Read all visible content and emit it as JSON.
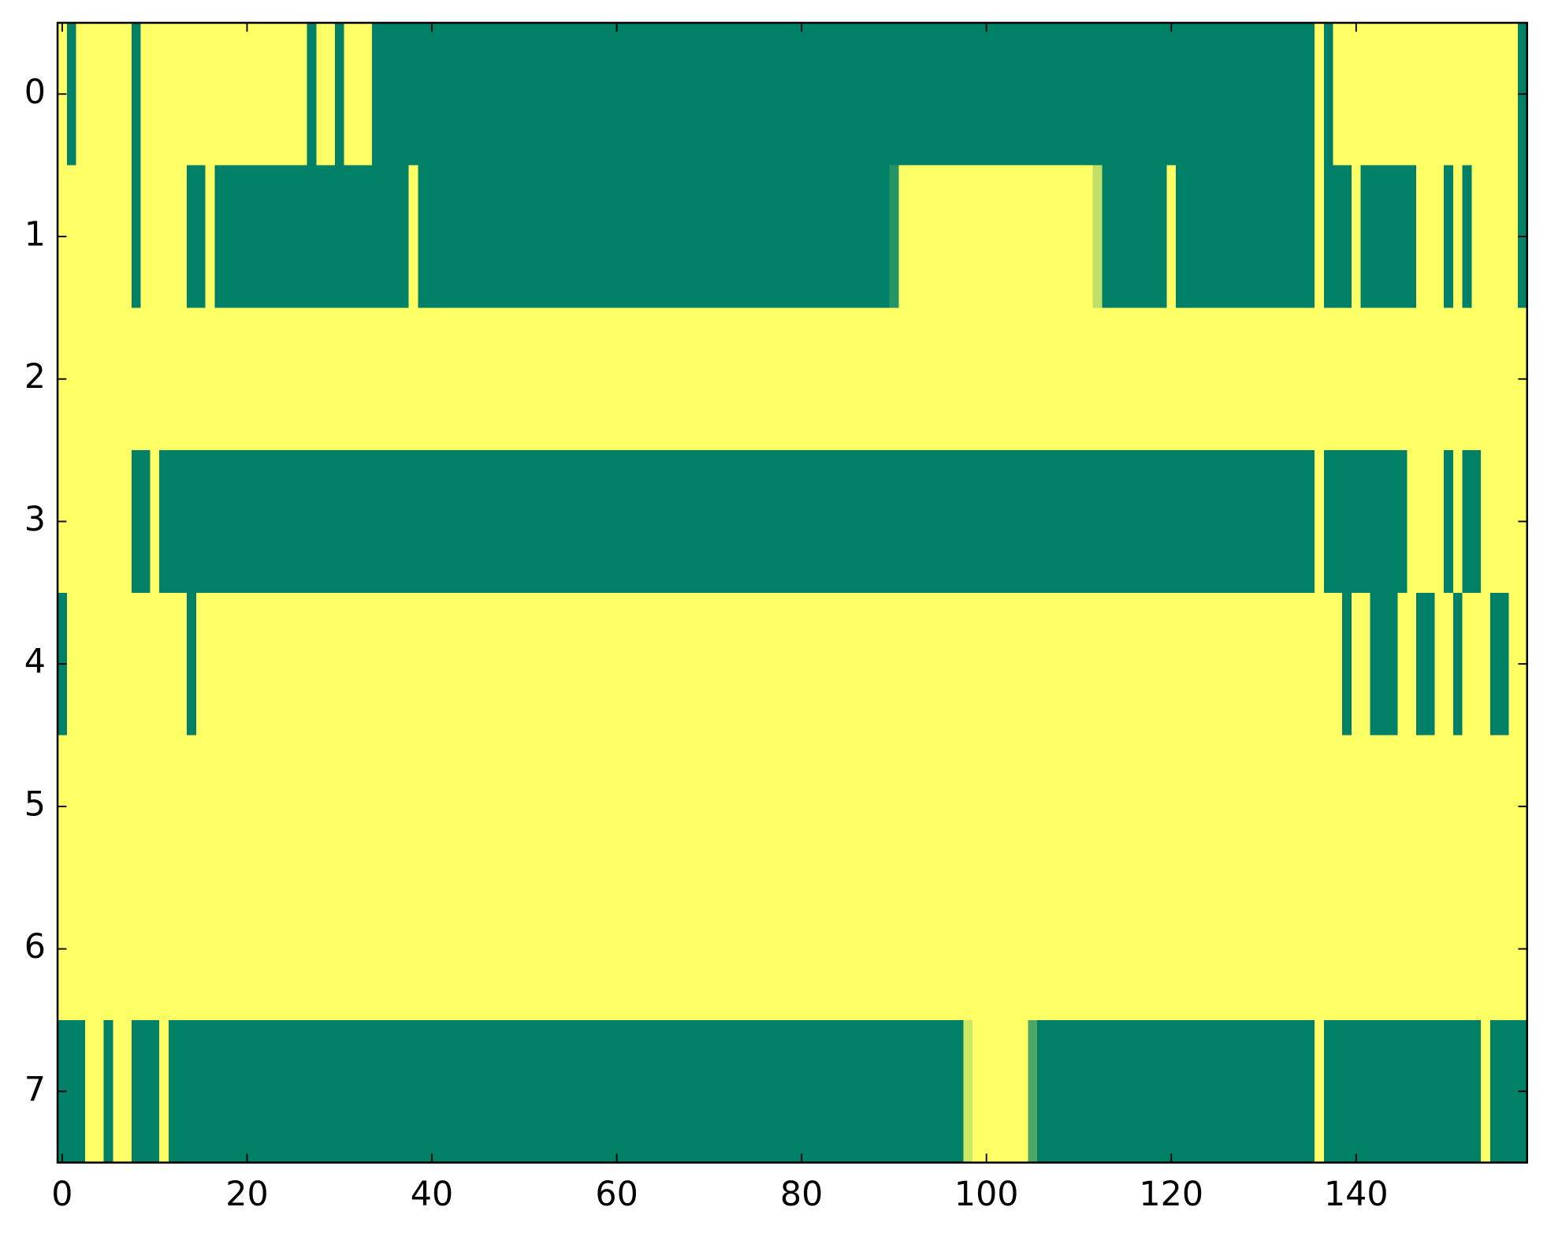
{
  "chart_data": {
    "type": "heatmap",
    "colors": [
      "#008066",
      "#ffff66"
    ],
    "clim": [
      0,
      1
    ],
    "xlim": [
      -0.5,
      158.5
    ],
    "ylim": [
      7.5,
      -0.5
    ],
    "xticks": [
      0,
      20,
      40,
      60,
      80,
      100,
      120,
      140
    ],
    "yticks": [
      0,
      1,
      2,
      3,
      4,
      5,
      6,
      7
    ],
    "z": [
      [
        1,
        0,
        1,
        1,
        1,
        1,
        1,
        1,
        0,
        1,
        1,
        1,
        1,
        1,
        1,
        1,
        1,
        1,
        1,
        1,
        1,
        1,
        1,
        1,
        1,
        1,
        1,
        0,
        1,
        1,
        0,
        1,
        1,
        1,
        0,
        0,
        0,
        0,
        0,
        0,
        0,
        0,
        0,
        0,
        0,
        0,
        0,
        0,
        0,
        0,
        0,
        0,
        0,
        0,
        0,
        0,
        0,
        0,
        0,
        0,
        0,
        0,
        0,
        0,
        0,
        0,
        0,
        0,
        0,
        0,
        0,
        0,
        0,
        0,
        0,
        0,
        0,
        0,
        0,
        0,
        0,
        0,
        0,
        0,
        0,
        0,
        0,
        0,
        0,
        0,
        0,
        0,
        0,
        0,
        0,
        0,
        0,
        0,
        0,
        0,
        0,
        0,
        0,
        0,
        0,
        0,
        0,
        0,
        0,
        0,
        0,
        0,
        0,
        0,
        0,
        0,
        0,
        0,
        0,
        0,
        0,
        0,
        0,
        0,
        0,
        0,
        0,
        0,
        0,
        0,
        0,
        0,
        0,
        0,
        0,
        0,
        1,
        0,
        1,
        1,
        1,
        1,
        1,
        1,
        1,
        1,
        1,
        1,
        1,
        1,
        1,
        1,
        1,
        1,
        1,
        1,
        1,
        1,
        0
      ],
      [
        1,
        1,
        1,
        1,
        1,
        1,
        1,
        1,
        0,
        1,
        1,
        1,
        1,
        1,
        0,
        0,
        1,
        0,
        0,
        0,
        0,
        0,
        0,
        0,
        0,
        0,
        0,
        0,
        0,
        0,
        0,
        0,
        0,
        0,
        0,
        0,
        0,
        0,
        1,
        0,
        0,
        0,
        0,
        0,
        0,
        0,
        0,
        0,
        0,
        0,
        0,
        0,
        0,
        0,
        0,
        0,
        0,
        0,
        0,
        0,
        0,
        0,
        0,
        0,
        0,
        0,
        0,
        0,
        0,
        0,
        0,
        0,
        0,
        0,
        0,
        0,
        0,
        0,
        0,
        0,
        0,
        0,
        0,
        0,
        0,
        0,
        0,
        0,
        0,
        0,
        0.15,
        1,
        1,
        1,
        1,
        1,
        1,
        1,
        1,
        1,
        1,
        1,
        1,
        1,
        1,
        1,
        1,
        1,
        1,
        1,
        1,
        1,
        0.75,
        0,
        0,
        0,
        0,
        0,
        0,
        0,
        1,
        0,
        0,
        0,
        0,
        0,
        0,
        0,
        0,
        0,
        0,
        0,
        0,
        0,
        0,
        0,
        1,
        0,
        0,
        0,
        1,
        0,
        0,
        0,
        0,
        0,
        0,
        1,
        1,
        1,
        0,
        1,
        0,
        1,
        1,
        1,
        1,
        1,
        0
      ],
      [
        1,
        1,
        1,
        1,
        1,
        1,
        1,
        1,
        1,
        1,
        1,
        1,
        1,
        1,
        1,
        1,
        1,
        1,
        1,
        1,
        1,
        1,
        1,
        1,
        1,
        1,
        1,
        1,
        1,
        1,
        1,
        1,
        1,
        1,
        1,
        1,
        1,
        1,
        1,
        1,
        1,
        1,
        1,
        1,
        1,
        1,
        1,
        1,
        1,
        1,
        1,
        1,
        1,
        1,
        1,
        1,
        1,
        1,
        1,
        1,
        1,
        1,
        1,
        1,
        1,
        1,
        1,
        1,
        1,
        1,
        1,
        1,
        1,
        1,
        1,
        1,
        1,
        1,
        1,
        1,
        1,
        1,
        1,
        1,
        1,
        1,
        1,
        1,
        1,
        1,
        1,
        1,
        1,
        1,
        1,
        1,
        1,
        1,
        1,
        1,
        1,
        1,
        1,
        1,
        1,
        1,
        1,
        1,
        1,
        1,
        1,
        1,
        1,
        1,
        1,
        1,
        1,
        1,
        1,
        1,
        1,
        1,
        1,
        1,
        1,
        1,
        1,
        1,
        1,
        1,
        1,
        1,
        1,
        1,
        1,
        1,
        1,
        1,
        1,
        1,
        1,
        1,
        1,
        1,
        1,
        1,
        1,
        1,
        1,
        1,
        1,
        1,
        1,
        1,
        1,
        1,
        1,
        1,
        1
      ],
      [
        1,
        1,
        1,
        1,
        1,
        1,
        1,
        1,
        0,
        0,
        1,
        0,
        0,
        0,
        0,
        0,
        0,
        0,
        0,
        0,
        0,
        0,
        0,
        0,
        0,
        0,
        0,
        0,
        0,
        0,
        0,
        0,
        0,
        0,
        0,
        0,
        0,
        0,
        0,
        0,
        0,
        0,
        0,
        0,
        0,
        0,
        0,
        0,
        0,
        0,
        0,
        0,
        0,
        0,
        0,
        0,
        0,
        0,
        0,
        0,
        0,
        0,
        0,
        0,
        0,
        0,
        0,
        0,
        0,
        0,
        0,
        0,
        0,
        0,
        0,
        0,
        0,
        0,
        0,
        0,
        0,
        0,
        0,
        0,
        0,
        0,
        0,
        0,
        0,
        0,
        0,
        0,
        0,
        0,
        0,
        0,
        0,
        0,
        0,
        0,
        0,
        0,
        0,
        0,
        0,
        0,
        0,
        0,
        0,
        0,
        0,
        0,
        0,
        0,
        0,
        0,
        0,
        0,
        0,
        0,
        0,
        0,
        0,
        0,
        0,
        0,
        0,
        0,
        0,
        0,
        0,
        0,
        0,
        0,
        0,
        0,
        1,
        0,
        0,
        0,
        0,
        0,
        0,
        0,
        0,
        0,
        1,
        1,
        1,
        1,
        0,
        1,
        0,
        0,
        1,
        1,
        1,
        1,
        1
      ],
      [
        0,
        1,
        1,
        1,
        1,
        1,
        1,
        1,
        1,
        1,
        1,
        1,
        1,
        1,
        0,
        1,
        1,
        1,
        1,
        1,
        1,
        1,
        1,
        1,
        1,
        1,
        1,
        1,
        1,
        1,
        1,
        1,
        1,
        1,
        1,
        1,
        1,
        1,
        1,
        1,
        1,
        1,
        1,
        1,
        1,
        1,
        1,
        1,
        1,
        1,
        1,
        1,
        1,
        1,
        1,
        1,
        1,
        1,
        1,
        1,
        1,
        1,
        1,
        1,
        1,
        1,
        1,
        1,
        1,
        1,
        1,
        1,
        1,
        1,
        1,
        1,
        1,
        1,
        1,
        1,
        1,
        1,
        1,
        1,
        1,
        1,
        1,
        1,
        1,
        1,
        1,
        1,
        1,
        1,
        1,
        1,
        1,
        1,
        1,
        1,
        1,
        1,
        1,
        1,
        1,
        1,
        1,
        1,
        1,
        1,
        1,
        1,
        1,
        1,
        1,
        1,
        1,
        1,
        1,
        1,
        1,
        1,
        1,
        1,
        1,
        1,
        1,
        1,
        1,
        1,
        1,
        1,
        1,
        1,
        1,
        1,
        1,
        1,
        1,
        0,
        1,
        1,
        0,
        0,
        0,
        1,
        1,
        0,
        0,
        1,
        1,
        0,
        1,
        1,
        1,
        0,
        0,
        1,
        1
      ],
      [
        1,
        1,
        1,
        1,
        1,
        1,
        1,
        1,
        1,
        1,
        1,
        1,
        1,
        1,
        1,
        1,
        1,
        1,
        1,
        1,
        1,
        1,
        1,
        1,
        1,
        1,
        1,
        1,
        1,
        1,
        1,
        1,
        1,
        1,
        1,
        1,
        1,
        1,
        1,
        1,
        1,
        1,
        1,
        1,
        1,
        1,
        1,
        1,
        1,
        1,
        1,
        1,
        1,
        1,
        1,
        1,
        1,
        1,
        1,
        1,
        1,
        1,
        1,
        1,
        1,
        1,
        1,
        1,
        1,
        1,
        1,
        1,
        1,
        1,
        1,
        1,
        1,
        1,
        1,
        1,
        1,
        1,
        1,
        1,
        1,
        1,
        1,
        1,
        1,
        1,
        1,
        1,
        1,
        1,
        1,
        1,
        1,
        1,
        1,
        1,
        1,
        1,
        1,
        1,
        1,
        1,
        1,
        1,
        1,
        1,
        1,
        1,
        1,
        1,
        1,
        1,
        1,
        1,
        1,
        1,
        1,
        1,
        1,
        1,
        1,
        1,
        1,
        1,
        1,
        1,
        1,
        1,
        1,
        1,
        1,
        1,
        1,
        1,
        1,
        1,
        1,
        1,
        1,
        1,
        1,
        1,
        1,
        1,
        1,
        1,
        1,
        1,
        1,
        1,
        1,
        1,
        1,
        1,
        1
      ],
      [
        1,
        1,
        1,
        1,
        1,
        1,
        1,
        1,
        1,
        1,
        1,
        1,
        1,
        1,
        1,
        1,
        1,
        1,
        1,
        1,
        1,
        1,
        1,
        1,
        1,
        1,
        1,
        1,
        1,
        1,
        1,
        1,
        1,
        1,
        1,
        1,
        1,
        1,
        1,
        1,
        1,
        1,
        1,
        1,
        1,
        1,
        1,
        1,
        1,
        1,
        1,
        1,
        1,
        1,
        1,
        1,
        1,
        1,
        1,
        1,
        1,
        1,
        1,
        1,
        1,
        1,
        1,
        1,
        1,
        1,
        1,
        1,
        1,
        1,
        1,
        1,
        1,
        1,
        1,
        1,
        1,
        1,
        1,
        1,
        1,
        1,
        1,
        1,
        1,
        1,
        1,
        1,
        1,
        1,
        1,
        1,
        1,
        1,
        1,
        1,
        1,
        1,
        1,
        1,
        1,
        1,
        1,
        1,
        1,
        1,
        1,
        1,
        1,
        1,
        1,
        1,
        1,
        1,
        1,
        1,
        1,
        1,
        1,
        1,
        1,
        1,
        1,
        1,
        1,
        1,
        1,
        1,
        1,
        1,
        1,
        1,
        1,
        1,
        1,
        1,
        1,
        1,
        1,
        1,
        1,
        1,
        1,
        1,
        1,
        1,
        1,
        1,
        1,
        1,
        1,
        1,
        1,
        1,
        1
      ],
      [
        0,
        0,
        0,
        1,
        1,
        0,
        1,
        1,
        0,
        0,
        0,
        1,
        0,
        0,
        0,
        0,
        0,
        0,
        0,
        0,
        0,
        0,
        0,
        0,
        0,
        0,
        0,
        0,
        0,
        0,
        0,
        0,
        0,
        0,
        0,
        0,
        0,
        0,
        0,
        0,
        0,
        0,
        0,
        0,
        0,
        0,
        0,
        0,
        0,
        0,
        0,
        0,
        0,
        0,
        0,
        0,
        0,
        0,
        0,
        0,
        0,
        0,
        0,
        0,
        0,
        0,
        0,
        0,
        0,
        0,
        0,
        0,
        0,
        0,
        0,
        0,
        0,
        0,
        0,
        0,
        0,
        0,
        0,
        0,
        0,
        0,
        0,
        0,
        0,
        0,
        0,
        0,
        0,
        0,
        0,
        0,
        0,
        0,
        0.8,
        1,
        1,
        1,
        1,
        1,
        1,
        0.3,
        0,
        0,
        0,
        0,
        0,
        0,
        0,
        0,
        0,
        0,
        0,
        0,
        0,
        0,
        0,
        0,
        0,
        0,
        0,
        0,
        0,
        0,
        0,
        0,
        0,
        0,
        0,
        0,
        0,
        0,
        1,
        0,
        0,
        0,
        0,
        0,
        0,
        0,
        0,
        0,
        0,
        0,
        0,
        0,
        0,
        0,
        0,
        0,
        1,
        0,
        0,
        0,
        0
      ]
    ]
  }
}
